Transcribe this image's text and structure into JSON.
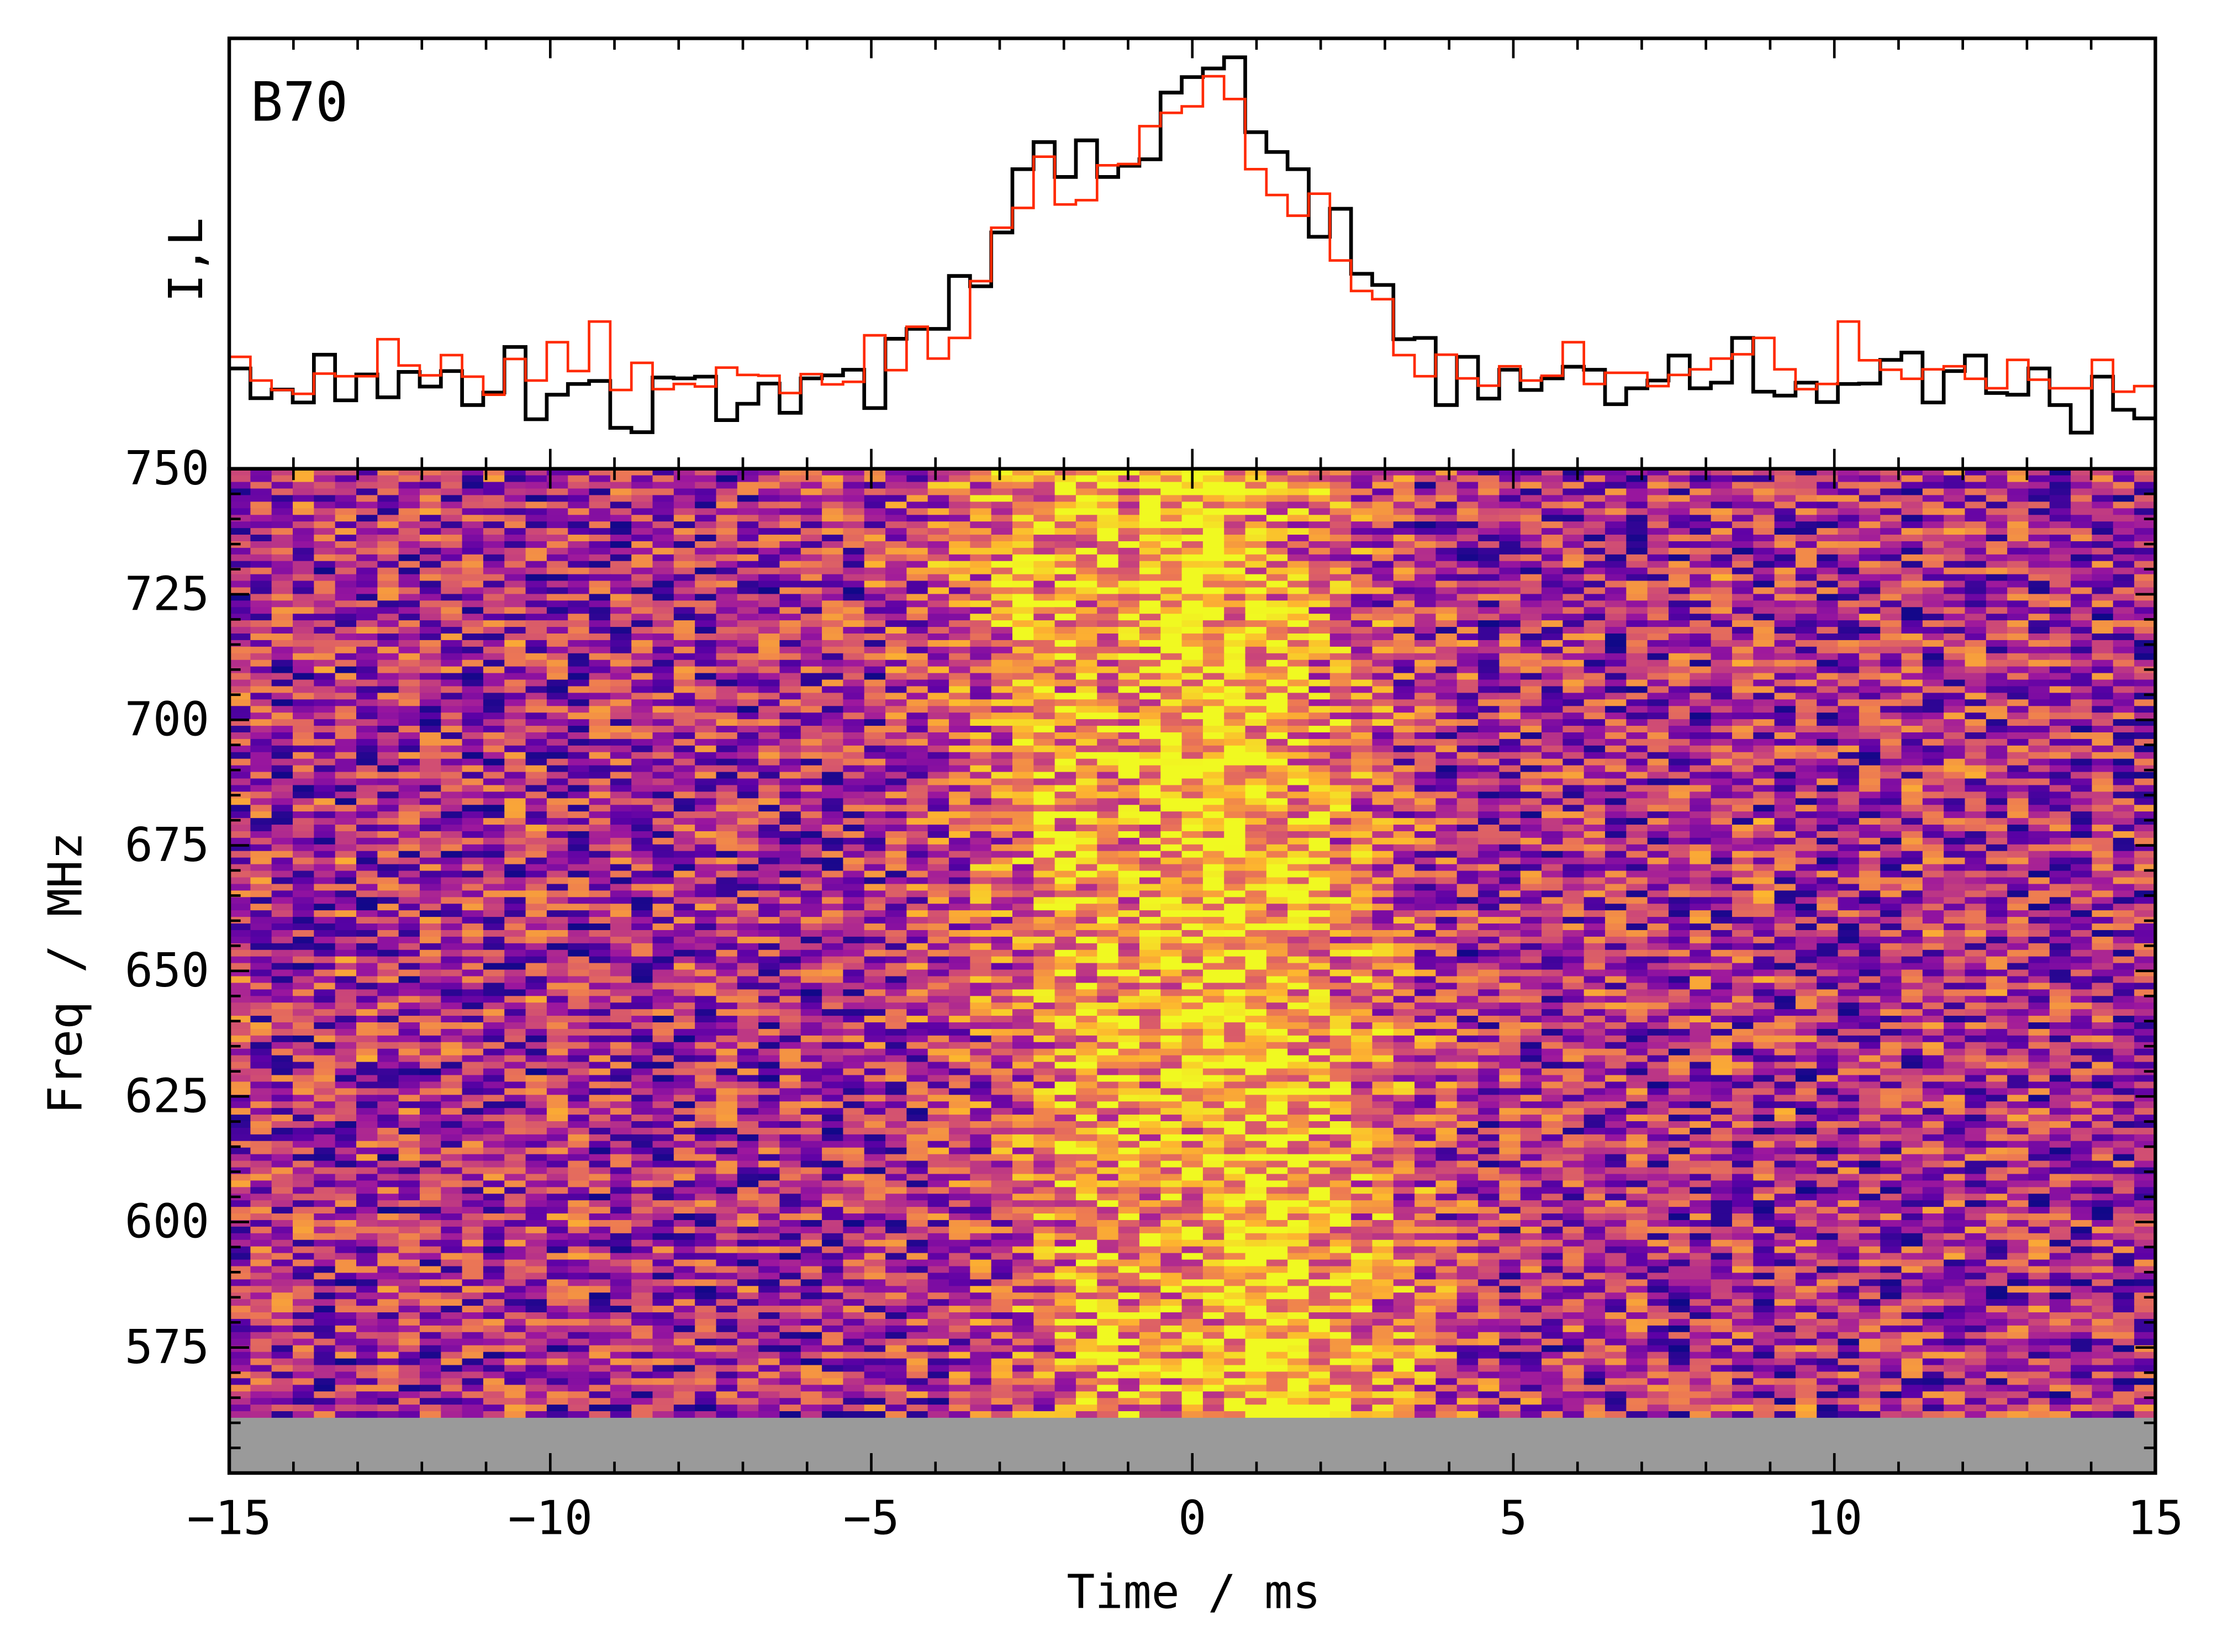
{
  "chart_data": [
    {
      "type": "line",
      "panel": "profile",
      "label": "B70",
      "ylabel": "I,L",
      "xlim": [
        -15,
        15
      ],
      "ylim": [
        0,
        1
      ],
      "drawstyle": "steps",
      "series": [
        {
          "name": "I",
          "color": "#000000",
          "values": [
            0.233,
            0.164,
            0.184,
            0.154,
            0.265,
            0.159,
            0.219,
            0.166,
            0.225,
            0.191,
            0.227,
            0.148,
            0.177,
            0.283,
            0.115,
            0.172,
            0.197,
            0.204,
            0.095,
            0.085,
            0.212,
            0.21,
            0.214,
            0.113,
            0.151,
            0.198,
            0.13,
            0.21,
            0.217,
            0.23,
            0.141,
            0.302,
            0.325,
            0.325,
            0.448,
            0.424,
            0.549,
            0.696,
            0.759,
            0.678,
            0.763,
            0.678,
            0.704,
            0.719,
            0.874,
            0.91,
            0.93,
            0.956,
            0.782,
            0.736,
            0.696,
            0.539,
            0.604,
            0.453,
            0.427,
            0.301,
            0.304,
            0.148,
            0.26,
            0.163,
            0.23,
            0.183,
            0.21,
            0.237,
            0.23,
            0.15,
            0.187,
            0.205,
            0.263,
            0.187,
            0.2,
            0.304,
            0.179,
            0.17,
            0.2,
            0.155,
            0.197,
            0.198,
            0.253,
            0.27,
            0.154,
            0.227,
            0.263,
            0.176,
            0.172,
            0.233,
            0.148,
            0.084,
            0.214,
            0.137,
            0.117
          ]
        },
        {
          "name": "L",
          "color": "#ff2a00",
          "values": [
            0.26,
            0.205,
            0.183,
            0.174,
            0.221,
            0.215,
            0.215,
            0.301,
            0.24,
            0.217,
            0.264,
            0.214,
            0.172,
            0.255,
            0.205,
            0.294,
            0.227,
            0.342,
            0.183,
            0.246,
            0.185,
            0.197,
            0.191,
            0.235,
            0.218,
            0.216,
            0.176,
            0.22,
            0.196,
            0.202,
            0.31,
            0.229,
            0.33,
            0.256,
            0.304,
            0.436,
            0.56,
            0.606,
            0.725,
            0.614,
            0.624,
            0.705,
            0.708,
            0.796,
            0.827,
            0.842,
            0.912,
            0.859,
            0.696,
            0.636,
            0.588,
            0.639,
            0.484,
            0.413,
            0.394,
            0.264,
            0.215,
            0.265,
            0.21,
            0.193,
            0.238,
            0.205,
            0.216,
            0.294,
            0.197,
            0.223,
            0.223,
            0.192,
            0.218,
            0.231,
            0.256,
            0.266,
            0.304,
            0.231,
            0.185,
            0.197,
            0.342,
            0.252,
            0.23,
            0.209,
            0.231,
            0.238,
            0.209,
            0.187,
            0.253,
            0.207,
            0.187,
            0.187,
            0.253,
            0.179,
            0.192
          ]
        }
      ]
    },
    {
      "type": "heatmap",
      "panel": "dynamic-spectrum",
      "xlabel": "Time / ms",
      "ylabel": "Freq / MHz",
      "xlim": [
        -15,
        15
      ],
      "ylim": [
        550,
        750
      ],
      "xticks": [
        "−15",
        "−10",
        "−5",
        "0",
        "5",
        "10",
        "15"
      ],
      "xtick_values": [
        -15,
        -10,
        -5,
        0,
        5,
        10,
        15
      ],
      "yticks": [
        "750",
        "725",
        "700",
        "675",
        "650",
        "625",
        "600",
        "575"
      ],
      "ytick_values": [
        750,
        725,
        700,
        675,
        650,
        625,
        600,
        575
      ],
      "time_bins": 91,
      "freq_channels": 144,
      "data_freq_range": [
        561,
        750
      ],
      "masked_freq_range": [
        550,
        561
      ],
      "masked_color": "#9a9a9a",
      "colormap": "plasma",
      "colormap_stops": [
        "#0d0887",
        "#5c01a6",
        "#9c179e",
        "#cc4778",
        "#ed7953",
        "#fdb42f",
        "#f0f921"
      ]
    }
  ]
}
